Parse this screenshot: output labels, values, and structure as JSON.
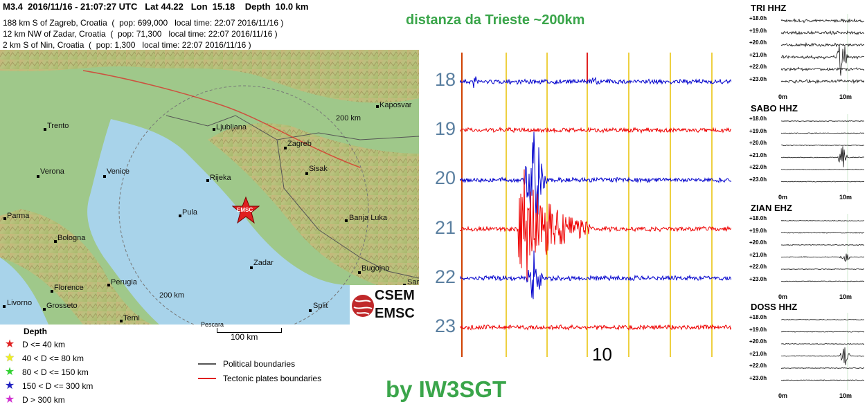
{
  "header": {
    "summary": "M3.4  2016/11/16 - 21:07:27 UTC   Lat 44.22   Lon  15.18    Depth  10.0 km",
    "lines": [
      "188 km S of Zagreb, Croatia  (  pop: 699,000   local time: 22:07 2016/11/16 )",
      "12 km NW of Zadar, Croatia  (  pop: 71,300   local time: 22:07 2016/11/16 )",
      "2 km S of Nin, Croatia  (  pop: 1,300   local time: 22:07 2016/11/16 )"
    ]
  },
  "map": {
    "cities": [
      "Kaposvar",
      "Trento",
      "Ljubljana",
      "Zagreb",
      "Verona",
      "Venice",
      "Rijeka",
      "Sisak",
      "Parma",
      "Pula",
      "Banja Luka",
      "Bologna",
      "Zadar",
      "Bugojno",
      "Florence",
      "Sar",
      "Livorno",
      "Split",
      "Perugia",
      "Grosseto",
      "Terni",
      "Pescara"
    ],
    "ring_labels": [
      "200 km",
      "200 km"
    ],
    "epicenter_label": "EMSC",
    "scale_label": "100 km"
  },
  "logo": {
    "line1": "CSEM",
    "line2": "EMSC"
  },
  "legend": {
    "title": "Depth",
    "items": [
      {
        "label": "D <= 40 km",
        "color": "#e02020"
      },
      {
        "label": "40 < D <= 80 km",
        "color": "#f0f020"
      },
      {
        "label": "80 < D <= 150 km",
        "color": "#30d030"
      },
      {
        "label": "150 < D <= 300 km",
        "color": "#2020c0"
      },
      {
        "label": "D > 300 km",
        "color": "#d030d0"
      }
    ],
    "boundaries": [
      {
        "label": "Political boundaries",
        "color": "#555555"
      },
      {
        "label": "Tectonic plates boundaries",
        "color": "#e02020"
      }
    ]
  },
  "title": "distanza da Trieste ~200km",
  "credit": "by IW3SGT",
  "seismogram": {
    "hours": [
      "18",
      "19",
      "20",
      "21",
      "22",
      "23"
    ],
    "minute_label": "10",
    "trace_colors": [
      "#0000cc",
      "#ee0000",
      "#0000cc",
      "#ee0000",
      "#0000cc",
      "#ee0000"
    ]
  },
  "stations": [
    {
      "name": "TRI HHZ"
    },
    {
      "name": "SABO HHZ"
    },
    {
      "name": "ZIAN EHZ"
    },
    {
      "name": "DOSS HHZ"
    }
  ],
  "station_ticks": [
    "+18.0h",
    "+19.0h",
    "+20.0h",
    "+21.0h",
    "+22.0h",
    "+23.0h"
  ],
  "station_axis": {
    "start": "0m",
    "end": "10m"
  }
}
